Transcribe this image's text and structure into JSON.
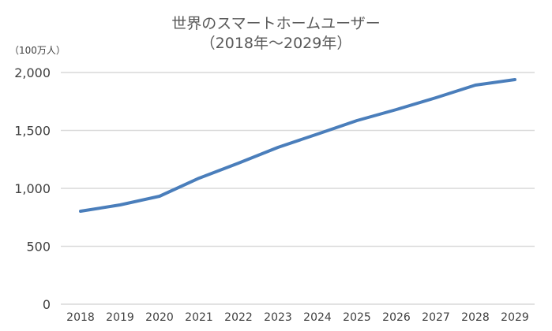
{
  "chart_data": {
    "type": "line",
    "title": "世界のスマートホームユーザー",
    "subtitle": "（2018年～2029年）",
    "xlabel": "",
    "ylabel": "（100万人）",
    "categories": [
      "2018",
      "2019",
      "2020",
      "2021",
      "2022",
      "2023",
      "2024",
      "2025",
      "2026",
      "2027",
      "2028",
      "2029"
    ],
    "series": [
      {
        "name": "スマートホームユーザー",
        "color": "#4a7ebb",
        "values": [
          803,
          857,
          932,
          1088,
          1218,
          1354,
          1469,
          1585,
          1680,
          1782,
          1891,
          1939
        ]
      }
    ],
    "ylim": [
      0,
      2000
    ],
    "yticks": [
      0,
      500,
      1000,
      1500,
      2000
    ],
    "ytick_labels": [
      "0",
      "500",
      "1,000",
      "1,500",
      "2,000"
    ],
    "grid": true,
    "legend": "none"
  },
  "colors": {
    "line": "#4a7ebb",
    "grid": "#d9d9d9",
    "text": "#404040",
    "title": "#595959"
  }
}
